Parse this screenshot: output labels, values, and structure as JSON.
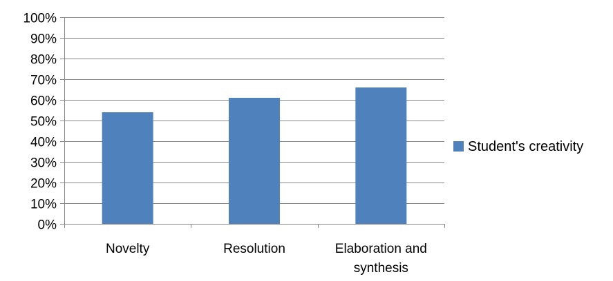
{
  "chart_data": {
    "type": "bar",
    "categories": [
      "Novelty",
      "Resolution",
      "Elaboration and synthesis"
    ],
    "category_lines": [
      [
        "Novelty"
      ],
      [
        "Resolution"
      ],
      [
        "Elaboration and",
        "synthesis"
      ]
    ],
    "series": [
      {
        "name": "Student's creativity",
        "values": [
          54,
          61,
          66
        ],
        "color": "#4f81bd"
      }
    ],
    "ylim": [
      0,
      100
    ],
    "yticks": [
      "0%",
      "10%",
      "20%",
      "30%",
      "40%",
      "50%",
      "60%",
      "70%",
      "80%",
      "90%",
      "100%"
    ],
    "grid": true,
    "legend_position": "right",
    "title": "",
    "xlabel": "",
    "ylabel": ""
  }
}
